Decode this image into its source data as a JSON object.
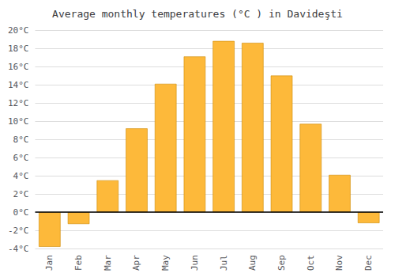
{
  "chart_data": {
    "type": "bar",
    "title": "Average monthly temperatures (°C ) in Davideşti",
    "categories": [
      "Jan",
      "Feb",
      "Mar",
      "Apr",
      "May",
      "Jun",
      "Jul",
      "Aug",
      "Sep",
      "Oct",
      "Nov",
      "Dec"
    ],
    "values": [
      -3.8,
      -1.3,
      3.5,
      9.2,
      14.1,
      17.1,
      18.8,
      18.6,
      15.0,
      9.7,
      4.1,
      -1.2
    ],
    "color": "#FDB93A",
    "ylim": [
      -4,
      20
    ],
    "yticks": [
      {
        "value": -4,
        "label": "-4°C"
      },
      {
        "value": -2,
        "label": "-2°C"
      },
      {
        "value": 0,
        "label": "0°C"
      },
      {
        "value": 2,
        "label": "2°C"
      },
      {
        "value": 4,
        "label": "4°C"
      },
      {
        "value": 6,
        "label": "6°C"
      },
      {
        "value": 8,
        "label": "8°C"
      },
      {
        "value": 10,
        "label": "10°C"
      },
      {
        "value": 12,
        "label": "12°C"
      },
      {
        "value": 14,
        "label": "14°C"
      },
      {
        "value": 16,
        "label": "16°C"
      },
      {
        "value": 18,
        "label": "18°C"
      },
      {
        "value": 20,
        "label": "20°C"
      }
    ],
    "grid": true
  }
}
